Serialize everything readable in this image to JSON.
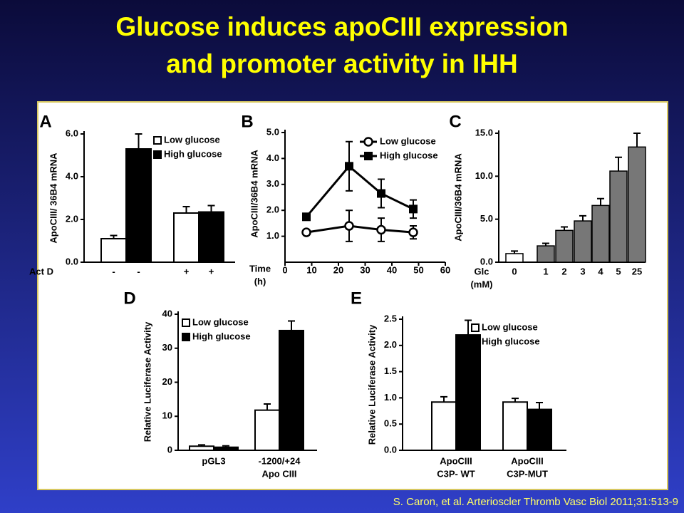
{
  "title": [
    "Glucose induces apoCIII expression",
    "and promoter activity in IHH"
  ],
  "citation": "S. Caron, et al. Arterioscler Thromb Vasc Biol 2011;31:513-9",
  "chart_data": [
    {
      "type": "bar",
      "panel": "A",
      "y_label": "ApoCIII/ 36B4 mRNA",
      "x_label": [
        "Act D"
      ],
      "categories": [
        "-",
        "+"
      ],
      "series": [
        {
          "name": "Low glucose",
          "color": "#ffffff",
          "values": [
            1.1,
            2.3
          ],
          "errors": [
            0.15,
            0.3
          ]
        },
        {
          "name": "High glucose",
          "color": "#000000",
          "values": [
            5.3,
            2.35
          ],
          "errors": [
            0.7,
            0.3
          ]
        }
      ],
      "ylim": [
        0,
        6
      ],
      "yticks": [
        {
          "value": 0,
          "label": "0.0"
        },
        {
          "value": 2,
          "label": "2.0"
        },
        {
          "value": 4,
          "label": "4.0"
        },
        {
          "value": 6,
          "label": "6.0"
        }
      ]
    },
    {
      "type": "line",
      "panel": "B",
      "y_label": "ApoCIII/36B4 mRNA",
      "x_label": [
        "Time",
        "(h)"
      ],
      "x": [
        8,
        24,
        36,
        48
      ],
      "series": [
        {
          "name": "Low  glucose",
          "color": "#000000",
          "marker": "circle",
          "values": [
            1.15,
            1.4,
            1.25,
            1.15
          ],
          "errors": [
            0.1,
            0.6,
            0.45,
            0.25
          ]
        },
        {
          "name": "High glucose",
          "color": "#000000",
          "marker": "square",
          "values": [
            1.75,
            3.7,
            2.65,
            2.05
          ],
          "errors": [
            0.1,
            0.95,
            0.55,
            0.35
          ]
        }
      ],
      "xlim": [
        0,
        60
      ],
      "xticks": [
        0,
        10,
        20,
        30,
        40,
        50,
        60
      ],
      "ylim": [
        0,
        5
      ],
      "yticks": [
        {
          "value": 1,
          "label": "1.0"
        },
        {
          "value": 2,
          "label": "2.0"
        },
        {
          "value": 3,
          "label": "3.0"
        },
        {
          "value": 4,
          "label": "4.0"
        },
        {
          "value": 5,
          "label": "5.0"
        }
      ]
    },
    {
      "type": "bar",
      "panel": "C",
      "y_label": "ApoCIII/36B4 mRNA",
      "x_label": [
        "Glc",
        "(mM)"
      ],
      "categories": [
        "0",
        "1",
        "2",
        "3",
        "4",
        "5",
        "25"
      ],
      "values": [
        1.0,
        1.9,
        3.7,
        4.8,
        6.6,
        10.6,
        13.4
      ],
      "errors": [
        0.3,
        0.3,
        0.4,
        0.6,
        0.8,
        1.6,
        1.6
      ],
      "colors": [
        "#ffffff",
        "#777777",
        "#777777",
        "#777777",
        "#777777",
        "#777777",
        "#777777"
      ],
      "ylim": [
        0,
        15
      ],
      "yticks": [
        {
          "value": 0,
          "label": "0.0"
        },
        {
          "value": 5,
          "label": "5.0"
        },
        {
          "value": 10,
          "label": "10.0"
        },
        {
          "value": 15,
          "label": "15.0"
        }
      ]
    },
    {
      "type": "bar",
      "panel": "D",
      "y_label": "Relative Luciferase Activity",
      "categories": [
        [
          "pGL3"
        ],
        [
          "-1200/+24",
          "Apo CIII"
        ]
      ],
      "series": [
        {
          "name": "Low  glucose",
          "color": "#ffffff",
          "values": [
            1.2,
            11.8
          ],
          "errors": [
            0.4,
            1.8
          ]
        },
        {
          "name": "High glucose",
          "color": "#000000",
          "values": [
            0.9,
            35.2
          ],
          "errors": [
            0.4,
            2.8
          ]
        }
      ],
      "ylim": [
        0,
        40
      ],
      "yticks": [
        0,
        10,
        20,
        30,
        40
      ]
    },
    {
      "type": "bar",
      "panel": "E",
      "y_label": "Relative Luciferase Activity",
      "categories": [
        [
          "ApoCIII",
          "C3P- WT"
        ],
        [
          "ApoCIII",
          "C3P-MUT"
        ]
      ],
      "series": [
        {
          "name": "Low  glucose",
          "color": "#ffffff",
          "values": [
            0.92,
            0.92
          ],
          "errors": [
            0.1,
            0.07
          ]
        },
        {
          "name": "High glucose",
          "color": "#000000",
          "values": [
            2.2,
            0.78
          ],
          "errors": [
            0.28,
            0.13
          ]
        }
      ],
      "ylim": [
        0,
        2.5
      ],
      "yticks": [
        {
          "value": 0,
          "label": "0.0"
        },
        {
          "value": 0.5,
          "label": "0.5"
        },
        {
          "value": 1,
          "label": "1.0"
        },
        {
          "value": 1.5,
          "label": "1.5"
        },
        {
          "value": 2,
          "label": "2.0"
        },
        {
          "value": 2.5,
          "label": "2.5"
        }
      ]
    }
  ]
}
